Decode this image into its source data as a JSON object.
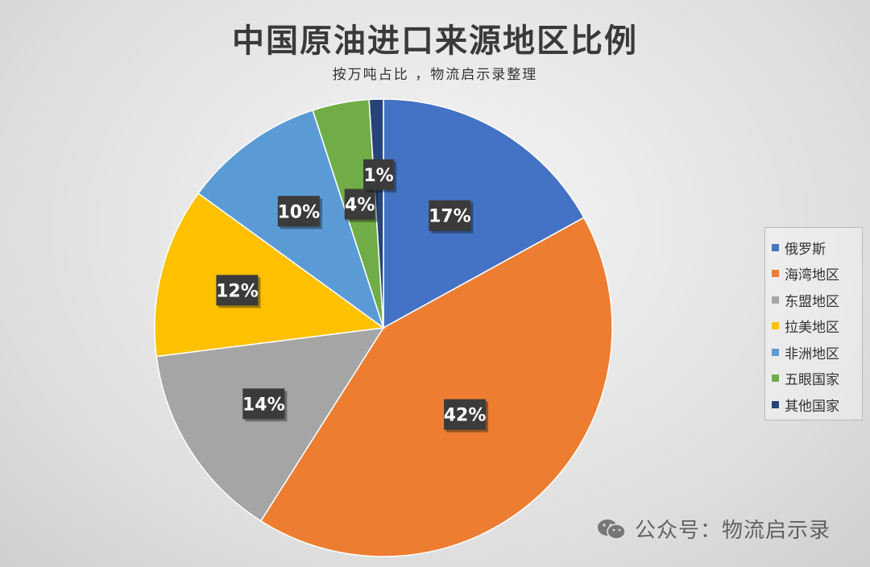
{
  "chart_data": {
    "type": "pie",
    "title": "中国原油进口来源地区比例",
    "subtitle": "按万吨占比 ，物流启示录整理",
    "categories": [
      "俄罗斯",
      "海湾地区",
      "东盟地区",
      "拉美地区",
      "非洲地区",
      "五眼国家",
      "其他国家"
    ],
    "values": [
      17,
      42,
      14,
      12,
      10,
      4,
      1
    ],
    "data_labels": [
      "17%",
      "42%",
      "14%",
      "12%",
      "10%",
      "4%",
      "1%"
    ],
    "colors": [
      "#4472C4",
      "#ED7D31",
      "#A5A5A5",
      "#FFC000",
      "#5B9BD5",
      "#70AD47",
      "#264478"
    ],
    "legend_position": "right",
    "start_angle": "12 o'clock, clockwise"
  },
  "watermark": {
    "icon": "wechat-icon",
    "text": "公众号：物流启示录"
  }
}
